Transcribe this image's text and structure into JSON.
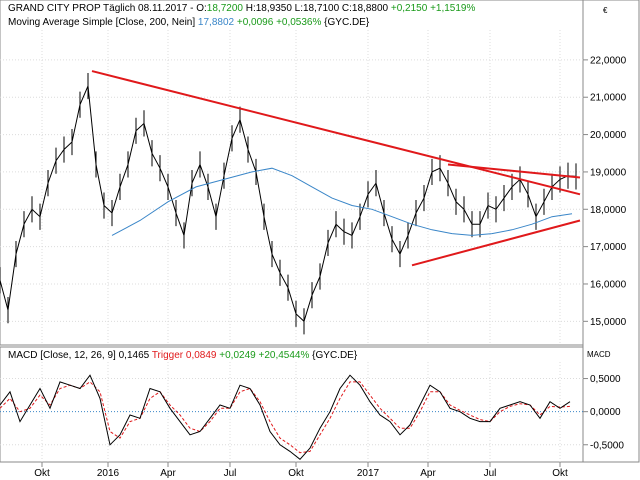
{
  "header": {
    "price_prefix": "GRAND CITY PROP Täglich  08.11.2017 - O:",
    "open": "18,7200",
    "h": " H:18,9350  L:18,7100  C:18,8800 ",
    "change": "+0,2150 +1,1519%",
    "ma_prefix": "Moving Average Simple [Close, 200, Nein]",
    "ma_value": "17,8802",
    "ma_change": "+0,0096 +0,0536%",
    "ma_suffix": "{GYC.DE}",
    "currency": "€"
  },
  "macd_header": {
    "prefix": "MACD [Close, 12, 26, 9]",
    "macd_value": "0,1465",
    "trigger_label": "Trigger",
    "trigger_value": "0,0849",
    "change": "+0,0249 +20,4544%",
    "suffix": "{GYC.DE}",
    "axis_label": "MACD"
  },
  "colors": {
    "price": "#000000",
    "ma": "#3a86c8",
    "trendline": "#e0191b",
    "trigger": "#e0191b",
    "positive": "#1a9a1a",
    "zero_line": "#3a86c8"
  },
  "chart_data": [
    {
      "type": "line",
      "series": [
        {
          "x": [
            0,
            8,
            16,
            24,
            32,
            40,
            48,
            56,
            64,
            72,
            80,
            88,
            96,
            104,
            112,
            120,
            128,
            136,
            144,
            152,
            160,
            168,
            176,
            184,
            192,
            200,
            208,
            216,
            224,
            232,
            240,
            248,
            256,
            264,
            272,
            280,
            288,
            296,
            304,
            312,
            320,
            328,
            336,
            344,
            352,
            360,
            368,
            376,
            384,
            392,
            400,
            408,
            416,
            424,
            432,
            440,
            448,
            456,
            464,
            472,
            480,
            488,
            496,
            504,
            512,
            520,
            528,
            536,
            544,
            552,
            560,
            568,
            576
          ],
          "values": [
            16.1,
            15.3,
            16.8,
            17.6,
            18.0,
            17.8,
            18.7,
            19.3,
            19.6,
            19.8,
            20.8,
            21.3,
            19.2,
            18.1,
            17.9,
            18.6,
            19.2,
            20.1,
            20.3,
            19.5,
            19.1,
            18.6,
            17.9,
            17.3,
            18.7,
            19.2,
            18.6,
            17.8,
            18.9,
            19.9,
            20.4,
            19.6,
            19.0,
            17.8,
            16.8,
            16.3,
            15.9,
            15.2,
            15.0,
            15.7,
            16.2,
            17.1,
            17.6,
            17.4,
            17.3,
            17.8,
            18.4,
            18.7,
            17.9,
            17.2,
            16.8,
            17.3,
            17.9,
            18.3,
            19.0,
            19.1,
            18.7,
            18.2,
            18.0,
            17.6,
            17.6,
            18.1,
            18.0,
            18.3,
            18.6,
            18.8,
            18.4,
            17.8,
            18.2,
            18.6,
            18.8,
            18.9,
            18.88
          ]
        },
        {
          "name": "Moving Average Simple [Close, 200, Nein]",
          "x": [
            112,
            140,
            168,
            196,
            224,
            252,
            272,
            292,
            312,
            332,
            352,
            372,
            392,
            412,
            432,
            452,
            472,
            492,
            512,
            532,
            552,
            572
          ],
          "values": [
            17.3,
            17.7,
            18.2,
            18.6,
            18.8,
            19.0,
            19.1,
            18.9,
            18.6,
            18.3,
            18.1,
            18.0,
            17.8,
            17.6,
            17.45,
            17.35,
            17.3,
            17.35,
            17.45,
            17.6,
            17.8,
            17.88
          ]
        }
      ],
      "trendlines": [
        {
          "x": [
            92,
            580
          ],
          "values": [
            21.7,
            18.4
          ]
        },
        {
          "x": [
            448,
            580
          ],
          "values": [
            19.2,
            18.85
          ]
        },
        {
          "x": [
            412,
            580
          ],
          "values": [
            16.5,
            17.7
          ]
        }
      ],
      "ylim": [
        14.5,
        22.8
      ],
      "yticks": [
        "15,0000",
        "16,0000",
        "17,0000",
        "18,0000",
        "19,0000",
        "20,0000",
        "21,0000",
        "22,0000"
      ],
      "ytick_values": [
        15,
        16,
        17,
        18,
        19,
        20,
        21,
        22
      ],
      "grid": true
    },
    {
      "type": "line",
      "series": [
        {
          "name": "MACD [Close, 12, 26, 9]",
          "x": [
            0,
            10,
            20,
            30,
            40,
            50,
            60,
            70,
            80,
            90,
            100,
            110,
            120,
            130,
            140,
            150,
            160,
            170,
            180,
            190,
            200,
            210,
            220,
            230,
            240,
            250,
            260,
            270,
            280,
            290,
            300,
            310,
            320,
            330,
            340,
            350,
            360,
            370,
            380,
            390,
            400,
            410,
            420,
            430,
            440,
            450,
            460,
            470,
            480,
            490,
            500,
            510,
            520,
            530,
            540,
            550,
            560,
            570
          ],
          "values": [
            0.1,
            0.3,
            -0.15,
            0.1,
            0.35,
            0.05,
            0.45,
            0.4,
            0.35,
            0.55,
            0.2,
            -0.5,
            -0.35,
            -0.05,
            -0.1,
            0.35,
            0.3,
            0.05,
            -0.15,
            -0.35,
            -0.3,
            -0.1,
            0.1,
            0.05,
            0.4,
            0.35,
            0.1,
            -0.3,
            -0.5,
            -0.6,
            -0.72,
            -0.55,
            -0.25,
            0.0,
            0.35,
            0.55,
            0.4,
            0.15,
            -0.05,
            -0.15,
            -0.35,
            -0.2,
            0.1,
            0.4,
            0.3,
            0.05,
            0.0,
            -0.1,
            -0.15,
            -0.15,
            0.05,
            0.1,
            0.15,
            0.1,
            -0.1,
            0.15,
            0.05,
            0.15
          ]
        },
        {
          "name": "Trigger",
          "x": [
            0,
            10,
            20,
            30,
            40,
            50,
            60,
            70,
            80,
            90,
            100,
            110,
            120,
            130,
            140,
            150,
            160,
            170,
            180,
            190,
            200,
            210,
            220,
            230,
            240,
            250,
            260,
            270,
            280,
            290,
            300,
            310,
            320,
            330,
            340,
            350,
            360,
            370,
            380,
            390,
            400,
            410,
            420,
            430,
            440,
            450,
            460,
            470,
            480,
            490,
            500,
            510,
            520,
            530,
            540,
            550,
            560,
            570
          ],
          "values": [
            0.05,
            0.2,
            0.0,
            0.05,
            0.25,
            0.1,
            0.35,
            0.4,
            0.35,
            0.45,
            0.3,
            -0.3,
            -0.4,
            -0.15,
            -0.1,
            0.2,
            0.3,
            0.1,
            -0.05,
            -0.25,
            -0.3,
            -0.15,
            0.05,
            0.05,
            0.3,
            0.35,
            0.15,
            -0.15,
            -0.4,
            -0.5,
            -0.62,
            -0.6,
            -0.35,
            -0.1,
            0.2,
            0.45,
            0.45,
            0.25,
            0.05,
            -0.1,
            -0.25,
            -0.25,
            0.0,
            0.3,
            0.3,
            0.1,
            0.02,
            -0.05,
            -0.12,
            -0.15,
            0.0,
            0.08,
            0.12,
            0.1,
            -0.05,
            0.08,
            0.07,
            0.08
          ]
        }
      ],
      "ylim": [
        -0.7,
        0.75
      ],
      "yticks": [
        "-0,5000",
        "0,0000",
        "0,5000"
      ],
      "ytick_values": [
        -0.5,
        0,
        0.5
      ],
      "xticks": [
        "Okt",
        "2016",
        "Apr",
        "Jul",
        "Okt",
        "2017",
        "Apr",
        "Jul",
        "Okt"
      ],
      "xtick_positions": [
        42,
        108,
        168,
        230,
        296,
        368,
        428,
        490,
        560
      ],
      "grid": true
    }
  ]
}
